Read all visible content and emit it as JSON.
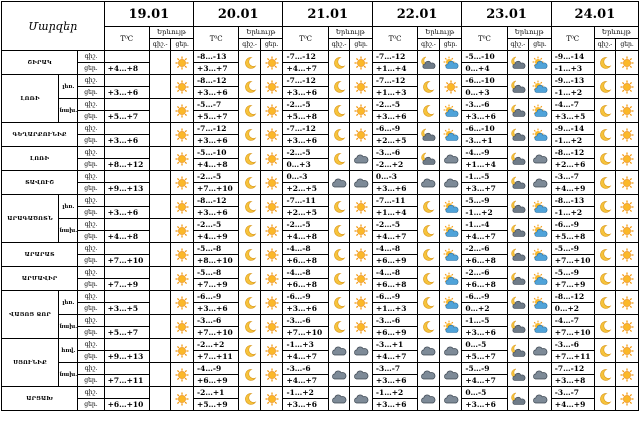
{
  "header": {
    "regions_title": "Մարզեր",
    "temp_unit": "T⁰C",
    "phenomena": "Երևույթ",
    "night_short": "գիշ.",
    "day_short": "ցեր.",
    "night_day": "գիշ.-",
    "day_lbl": "ցեր."
  },
  "dates": [
    "19.01",
    "20.01",
    "21.01",
    "22.01",
    "23.01",
    "24.01"
  ],
  "regions": [
    {
      "name": "ՇԻՐԱԿ",
      "rows": [
        {
          "zone": "",
          "temps": [
            [
              "",
              "+4…+8"
            ],
            [
              "-8…-13",
              "+3…+7"
            ],
            [
              "-7…-12",
              "+4…+7"
            ],
            [
              "-7…-12",
              "+1…+4"
            ],
            [
              "-5…-10",
              "0…+4"
            ],
            [
              "-9…-14",
              "-1…+3"
            ]
          ],
          "icons": [
            [
              "",
              "sun"
            ],
            [
              "moon",
              "sun"
            ],
            [
              "moon",
              "sun"
            ],
            [
              "moon-cloud",
              "sun-cloud"
            ],
            [
              "moon-cloud",
              "sun-cloud"
            ],
            [
              "moon",
              "sun"
            ]
          ]
        }
      ]
    },
    {
      "name": "ԼՈՌԻ",
      "rows": [
        {
          "zone": "լեռ.",
          "temps": [
            [
              "",
              "+3…+6"
            ],
            [
              "-8…-12",
              "+3…+6"
            ],
            [
              "-7…-12",
              "+3…+6"
            ],
            [
              "-7…-12",
              "+1…+3"
            ],
            [
              "-6…-10",
              "0…+3"
            ],
            [
              "-9…-13",
              "-1…+2"
            ]
          ],
          "icons": [
            [
              "",
              "sun"
            ],
            [
              "moon",
              "sun"
            ],
            [
              "moon",
              "sun"
            ],
            [
              "moon",
              "sun"
            ],
            [
              "moon-cloud",
              "sun-cloud"
            ],
            [
              "moon",
              "sun"
            ]
          ]
        },
        {
          "zone": "նախ.",
          "temps": [
            [
              "",
              "+5…+7"
            ],
            [
              "-5…-7",
              "+5…+7"
            ],
            [
              "-2…-5",
              "+5…+8"
            ],
            [
              "-2…-5",
              "+3…+6"
            ],
            [
              "-3…-6",
              "+3…+6"
            ],
            [
              "-4…-7",
              "+3…+5"
            ]
          ],
          "icons": [
            [
              "",
              "sun"
            ],
            [
              "moon",
              "sun"
            ],
            [
              "moon",
              "sun"
            ],
            [
              "moon",
              "sun-cloud"
            ],
            [
              "moon-cloud",
              "sun-cloud"
            ],
            [
              "moon",
              "sun"
            ]
          ]
        }
      ]
    },
    {
      "name": "ԳԵՂԱՐՔՈՒՆԻՔ",
      "rows": [
        {
          "zone": "",
          "temps": [
            [
              "",
              "+3…+6"
            ],
            [
              "-7…-12",
              "+3…+6"
            ],
            [
              "-7…-12",
              "+3…+6"
            ],
            [
              "-6…-9",
              "+2…+5"
            ],
            [
              "-6…-10",
              "-3…+1"
            ],
            [
              "-9…-14",
              "-1…+2"
            ]
          ],
          "icons": [
            [
              "",
              "sun"
            ],
            [
              "moon",
              "sun"
            ],
            [
              "moon",
              "sun"
            ],
            [
              "moon-cloud",
              "sun-cloud"
            ],
            [
              "moon-cloud",
              "sun-cloud"
            ],
            [
              "moon",
              "sun"
            ]
          ]
        }
      ]
    },
    {
      "name": "ԼՈՌԻ",
      "rows": [
        {
          "zone": "",
          "temps": [
            [
              "",
              "+8…+12"
            ],
            [
              "-5…-10",
              "+4…+8"
            ],
            [
              "-2…-5",
              "0…+3"
            ],
            [
              "-3…-6",
              "-2…+2"
            ],
            [
              "-4…-9",
              "+1…+4"
            ],
            [
              "-8…-12",
              "+2…+6"
            ]
          ],
          "icons": [
            [
              "",
              "sun"
            ],
            [
              "moon",
              "sun"
            ],
            [
              "moon",
              "cloud"
            ],
            [
              "moon-cloud",
              "cloud"
            ],
            [
              "moon-cloud",
              "cloud"
            ],
            [
              "moon",
              "sun"
            ]
          ]
        }
      ]
    },
    {
      "name": "ՏԱՎՈՒՇ",
      "rows": [
        {
          "zone": "",
          "temps": [
            [
              "",
              "+9…+13"
            ],
            [
              "-2…-5",
              "+7…+10"
            ],
            [
              "0…-3",
              "+2…+5"
            ],
            [
              "0…-3",
              "+3…+6"
            ],
            [
              "-1…-5",
              "+3…+7"
            ],
            [
              "-3…-7",
              "+4…+9"
            ]
          ],
          "icons": [
            [
              "",
              "sun"
            ],
            [
              "moon",
              "sun"
            ],
            [
              "cloud",
              "cloud"
            ],
            [
              "cloud",
              "cloud"
            ],
            [
              "moon-cloud",
              "cloud"
            ],
            [
              "moon",
              "sun"
            ]
          ]
        }
      ]
    },
    {
      "name": "ԱՐԱԳԱԾՈՏՆ",
      "rows": [
        {
          "zone": "լեռ.",
          "temps": [
            [
              "",
              "+3…+6"
            ],
            [
              "-8…-12",
              "+3…+6"
            ],
            [
              "-7…-11",
              "+2…+5"
            ],
            [
              "-7…-11",
              "+1…+4"
            ],
            [
              "-5…-9",
              "-1…+2"
            ],
            [
              "-8…-13",
              "-1…+2"
            ]
          ],
          "icons": [
            [
              "",
              "sun"
            ],
            [
              "moon",
              "sun"
            ],
            [
              "moon",
              "sun"
            ],
            [
              "moon",
              "sun-cloud"
            ],
            [
              "moon-cloud",
              "sun-cloud"
            ],
            [
              "moon",
              "sun"
            ]
          ]
        },
        {
          "zone": "նախ.",
          "temps": [
            [
              "",
              "+4…+8"
            ],
            [
              "-2…-5",
              "+4…+9"
            ],
            [
              "-2…-5",
              "+4…+8"
            ],
            [
              "-2…-5",
              "+4…+7"
            ],
            [
              "-1…-4",
              "+4…+7"
            ],
            [
              "-6…-9",
              "+5…+8"
            ]
          ],
          "icons": [
            [
              "",
              "sun"
            ],
            [
              "moon",
              "sun"
            ],
            [
              "moon",
              "sun"
            ],
            [
              "moon",
              "sun-cloud"
            ],
            [
              "moon-cloud",
              "sun-cloud"
            ],
            [
              "moon",
              "sun"
            ]
          ]
        }
      ]
    },
    {
      "name": "ԱՐԱՐԱՏ",
      "rows": [
        {
          "zone": "",
          "temps": [
            [
              "",
              "+7…+10"
            ],
            [
              "-5…-8",
              "+8…+10"
            ],
            [
              "-4…-8",
              "+6…+8"
            ],
            [
              "-4…-8",
              "+6…+9"
            ],
            [
              "-2…-6",
              "+6…+8"
            ],
            [
              "-5…-9",
              "+7…+10"
            ]
          ],
          "icons": [
            [
              "",
              "sun"
            ],
            [
              "moon",
              "sun"
            ],
            [
              "moon",
              "sun"
            ],
            [
              "moon",
              "sun-cloud"
            ],
            [
              "moon-cloud",
              "sun-cloud"
            ],
            [
              "moon",
              "sun"
            ]
          ]
        }
      ]
    },
    {
      "name": "ԱՐՄԱՎԻՐ",
      "rows": [
        {
          "zone": "",
          "temps": [
            [
              "",
              "+7…+9"
            ],
            [
              "-5…-8",
              "+7…+9"
            ],
            [
              "-4…-8",
              "+6…+8"
            ],
            [
              "-4…-8",
              "+6…+8"
            ],
            [
              "-2…-6",
              "+6…+8"
            ],
            [
              "-5…-9",
              "+7…+9"
            ]
          ],
          "icons": [
            [
              "",
              "sun"
            ],
            [
              "moon",
              "sun"
            ],
            [
              "moon",
              "sun"
            ],
            [
              "moon",
              "sun-cloud"
            ],
            [
              "moon-cloud",
              "sun-cloud"
            ],
            [
              "moon",
              "sun"
            ]
          ]
        }
      ]
    },
    {
      "name": "ՎԱՅՈՑ ՁՈՐ",
      "rows": [
        {
          "zone": "լեռ.",
          "temps": [
            [
              "",
              "+3…+5"
            ],
            [
              "-6…-9",
              "+3…+6"
            ],
            [
              "-6…-9",
              "+3…+6"
            ],
            [
              "-6…-9",
              "+1…+3"
            ],
            [
              "-6…-9",
              "0…+2"
            ],
            [
              "-8…-12",
              "0…+2"
            ]
          ],
          "icons": [
            [
              "",
              "sun"
            ],
            [
              "moon",
              "sun"
            ],
            [
              "moon",
              "sun"
            ],
            [
              "moon",
              "sun-cloud"
            ],
            [
              "moon-cloud",
              "sun-cloud"
            ],
            [
              "moon",
              "sun"
            ]
          ]
        },
        {
          "zone": "նախ.",
          "temps": [
            [
              "",
              "+5…+7"
            ],
            [
              "-3…-6",
              "+7…+10"
            ],
            [
              "-3…-6",
              "+7…+10"
            ],
            [
              "-3…-6",
              "+6…+9"
            ],
            [
              "-1…-5",
              "+3…+6"
            ],
            [
              "-4…-7",
              "+7…+10"
            ]
          ],
          "icons": [
            [
              "",
              "sun"
            ],
            [
              "moon",
              "sun"
            ],
            [
              "moon",
              "sun"
            ],
            [
              "moon",
              "sun-cloud"
            ],
            [
              "moon-cloud",
              "sun-cloud"
            ],
            [
              "moon",
              "sun"
            ]
          ]
        }
      ]
    },
    {
      "name": "ՍՅՈՒՆԻՔ",
      "rows": [
        {
          "zone": "հով.",
          "temps": [
            [
              "",
              "+9…+13"
            ],
            [
              "-2…+2",
              "+7…+11"
            ],
            [
              "-1…+3",
              "+4…+7"
            ],
            [
              "-3…+1",
              "+4…+7"
            ],
            [
              "0…-5",
              "+5…+7"
            ],
            [
              "-3…-6",
              "+7…+11"
            ]
          ],
          "icons": [
            [
              "",
              "sun"
            ],
            [
              "moon",
              "sun"
            ],
            [
              "cloud",
              "cloud"
            ],
            [
              "cloud",
              "cloud"
            ],
            [
              "moon-cloud",
              "cloud"
            ],
            [
              "moon",
              "sun"
            ]
          ]
        },
        {
          "zone": "նախ.",
          "temps": [
            [
              "",
              "+7…+11"
            ],
            [
              "-4…-9",
              "+6…+9"
            ],
            [
              "-3…-6",
              "+4…+7"
            ],
            [
              "-3…-7",
              "+3…+6"
            ],
            [
              "-5…-9",
              "+4…+7"
            ],
            [
              "-7…-12",
              "+3…+8"
            ]
          ],
          "icons": [
            [
              "",
              "sun"
            ],
            [
              "moon",
              "sun"
            ],
            [
              "cloud",
              "cloud"
            ],
            [
              "cloud",
              "cloud"
            ],
            [
              "moon-cloud",
              "cloud"
            ],
            [
              "moon",
              "sun"
            ]
          ]
        }
      ]
    },
    {
      "name": "ԱՐՑԱԽ",
      "rows": [
        {
          "zone": "",
          "temps": [
            [
              "",
              "+6…+10"
            ],
            [
              "-2…+1",
              "+5…+9"
            ],
            [
              "-1…+2",
              "+3…+6"
            ],
            [
              "-1…+2",
              "+3…+6"
            ],
            [
              "0…-5",
              "+3…+6"
            ],
            [
              "-3…-7",
              "+4…+9"
            ]
          ],
          "icons": [
            [
              "",
              "sun"
            ],
            [
              "moon",
              "sun"
            ],
            [
              "cloud",
              "cloud"
            ],
            [
              "cloud",
              "cloud"
            ],
            [
              "moon-cloud",
              "cloud"
            ],
            [
              "moon",
              "sun"
            ]
          ]
        }
      ]
    }
  ]
}
